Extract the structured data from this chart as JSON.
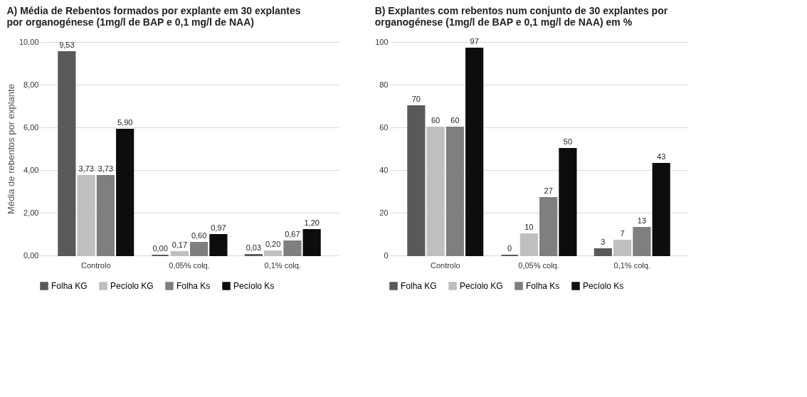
{
  "chart_data": [
    {
      "type": "bar",
      "title": "A)  Média de Rebentos formados por explante em 30 explantes por organogénese (1mg/l de BAP e 0,1 mg/l de NAA)",
      "ylabel": "Média de rebentos por explante",
      "categories": [
        "Controlo",
        "0,05% colq.",
        "0,1% colq."
      ],
      "series": [
        {
          "name": "Folha KG",
          "color": "#595959",
          "values": [
            9.53,
            0,
            0.03
          ],
          "value_labels": [
            "9,53",
            "0,00",
            "0,03"
          ]
        },
        {
          "name": "Pecíolo KG",
          "color": "#bfbfbf",
          "values": [
            3.73,
            0.17,
            0.2
          ],
          "value_labels": [
            "3,73",
            "0,17",
            "0,20"
          ]
        },
        {
          "name": "Folha Ks",
          "color": "#7f7f7f",
          "values": [
            3.73,
            0.6,
            0.67
          ],
          "value_labels": [
            "3,73",
            "0,60",
            "0,67"
          ]
        },
        {
          "name": "Pecíolo Ks",
          "color": "#0d0d0d",
          "values": [
            5.9,
            0.97,
            1.2
          ],
          "value_labels": [
            "5,90",
            "0,97",
            "1,20"
          ]
        }
      ],
      "ylim": [
        0,
        10
      ],
      "yticks": [
        {
          "value": 0,
          "label": "0,00"
        },
        {
          "value": 2,
          "label": "2,00"
        },
        {
          "value": 4,
          "label": "4,00"
        },
        {
          "value": 6,
          "label": "6,00"
        },
        {
          "value": 8,
          "label": "8,00"
        },
        {
          "value": 10,
          "label": "10,00"
        }
      ],
      "grid": "y",
      "legend": "bottom"
    },
    {
      "type": "bar",
      "title": "B)  Explantes com rebentos num conjunto de 30 explantes por organogénese (1mg/l de BAP e 0,1 mg/l de NAA) em %",
      "categories": [
        "Controlo",
        "0,05% colq.",
        "0,1% colq."
      ],
      "series": [
        {
          "name": "Folha KG",
          "color": "#595959",
          "values": [
            70,
            0,
            3
          ]
        },
        {
          "name": "Pecíolo KG",
          "color": "#bfbfbf",
          "values": [
            60,
            10,
            7
          ]
        },
        {
          "name": "Folha Ks",
          "color": "#7f7f7f",
          "values": [
            60,
            27,
            13
          ]
        },
        {
          "name": "Pecíolo Ks",
          "color": "#0d0d0d",
          "values": [
            97,
            50,
            43
          ]
        }
      ],
      "ylim": [
        0,
        100
      ],
      "yticks": [
        0,
        20,
        40,
        60,
        80,
        100
      ],
      "grid": "y",
      "legend": "bottom",
      "data_labels": true
    }
  ]
}
